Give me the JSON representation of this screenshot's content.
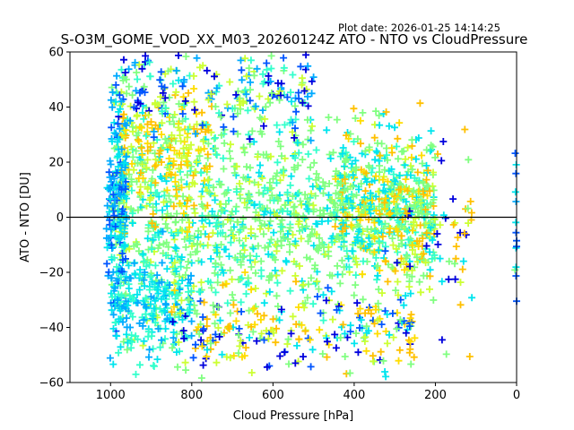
{
  "chart_data": {
    "type": "scatter",
    "title": "S-O3M_GOME_VOD_XX_M03_20260124Z ATO - NTO vs CloudPressure",
    "annotation": "Plot date: 2026-01-25 14:14:25",
    "xlabel": "Cloud Pressure [hPa]",
    "ylabel": "ATO - NTO [DU]",
    "xlim": [
      1100,
      0
    ],
    "ylim": [
      -60,
      60
    ],
    "x_inverted": true,
    "xticks": [
      1000,
      800,
      600,
      400,
      200,
      0
    ],
    "xtick_labels": [
      "1000",
      "800",
      "600",
      "400",
      "200",
      "0"
    ],
    "yticks": [
      -60,
      -40,
      -20,
      0,
      20,
      40,
      60
    ],
    "ytick_labels": [
      "−60",
      "−40",
      "−20",
      "0",
      "20",
      "40",
      "60"
    ],
    "reference_line": {
      "y": 0,
      "color": "#000000"
    },
    "grid": false,
    "legend": "none",
    "marker": "+",
    "colormap": [
      "#0000dd",
      "#0055ff",
      "#00aaff",
      "#00e5ee",
      "#33ffcc",
      "#80ff80",
      "#ccff33",
      "#ffdd00",
      "#ffc000"
    ],
    "point_clusters": [
      {
        "name": "core",
        "x_range": [
          1000,
          200
        ],
        "y_center": 0,
        "y_spread": 22,
        "count": 1300,
        "colors": [
          "#80ff80",
          "#80ff80",
          "#33ffcc",
          "#00e5ee",
          "#80ff80",
          "#ccff33"
        ]
      },
      {
        "name": "upper-left-yellow",
        "x_range": [
          980,
          750
        ],
        "y_center": 22,
        "y_spread": 12,
        "count": 160,
        "colors": [
          "#ffc000",
          "#ffdd00",
          "#ccff33"
        ]
      },
      {
        "name": "upper-blue-top",
        "x_range": [
          1000,
          500
        ],
        "y_center": 45,
        "y_spread": 8,
        "count": 220,
        "colors": [
          "#0000dd",
          "#0055ff",
          "#00aaff",
          "#33ffcc",
          "#80ff80",
          "#ccff33"
        ]
      },
      {
        "name": "left-edge-blue",
        "x_range": [
          1010,
          960
        ],
        "y_center": 5,
        "y_spread": 22,
        "count": 160,
        "colors": [
          "#0055ff",
          "#00aaff",
          "#00e5ee"
        ]
      },
      {
        "name": "lower-left-cyan",
        "x_range": [
          1000,
          800
        ],
        "y_center": -30,
        "y_spread": 10,
        "count": 200,
        "colors": [
          "#00aaff",
          "#00e5ee",
          "#33ffcc"
        ]
      },
      {
        "name": "lower-mixed",
        "x_range": [
          850,
          250
        ],
        "y_center": -42,
        "y_spread": 9,
        "count": 260,
        "colors": [
          "#ffc000",
          "#ffdd00",
          "#0000dd",
          "#0055ff",
          "#80ff80",
          "#00e5ee",
          "#ccff33"
        ]
      },
      {
        "name": "right-orange",
        "x_range": [
          450,
          200
        ],
        "y_center": 8,
        "y_spread": 14,
        "count": 200,
        "colors": [
          "#ffc000",
          "#ffdd00",
          "#00e5ee",
          "#80ff80"
        ]
      },
      {
        "name": "right-tail",
        "x_range": [
          300,
          110
        ],
        "y_center": -5,
        "y_spread": 20,
        "count": 70,
        "colors": [
          "#ccff33",
          "#80ff80",
          "#ffc000",
          "#0000dd",
          "#00e5ee"
        ]
      },
      {
        "name": "zero-pressure",
        "x_range": [
          4,
          0
        ],
        "y_center": 0,
        "y_spread": 14,
        "count": 14,
        "colors": [
          "#00aaff",
          "#00e5ee",
          "#80ff80",
          "#0055ff"
        ]
      }
    ]
  }
}
